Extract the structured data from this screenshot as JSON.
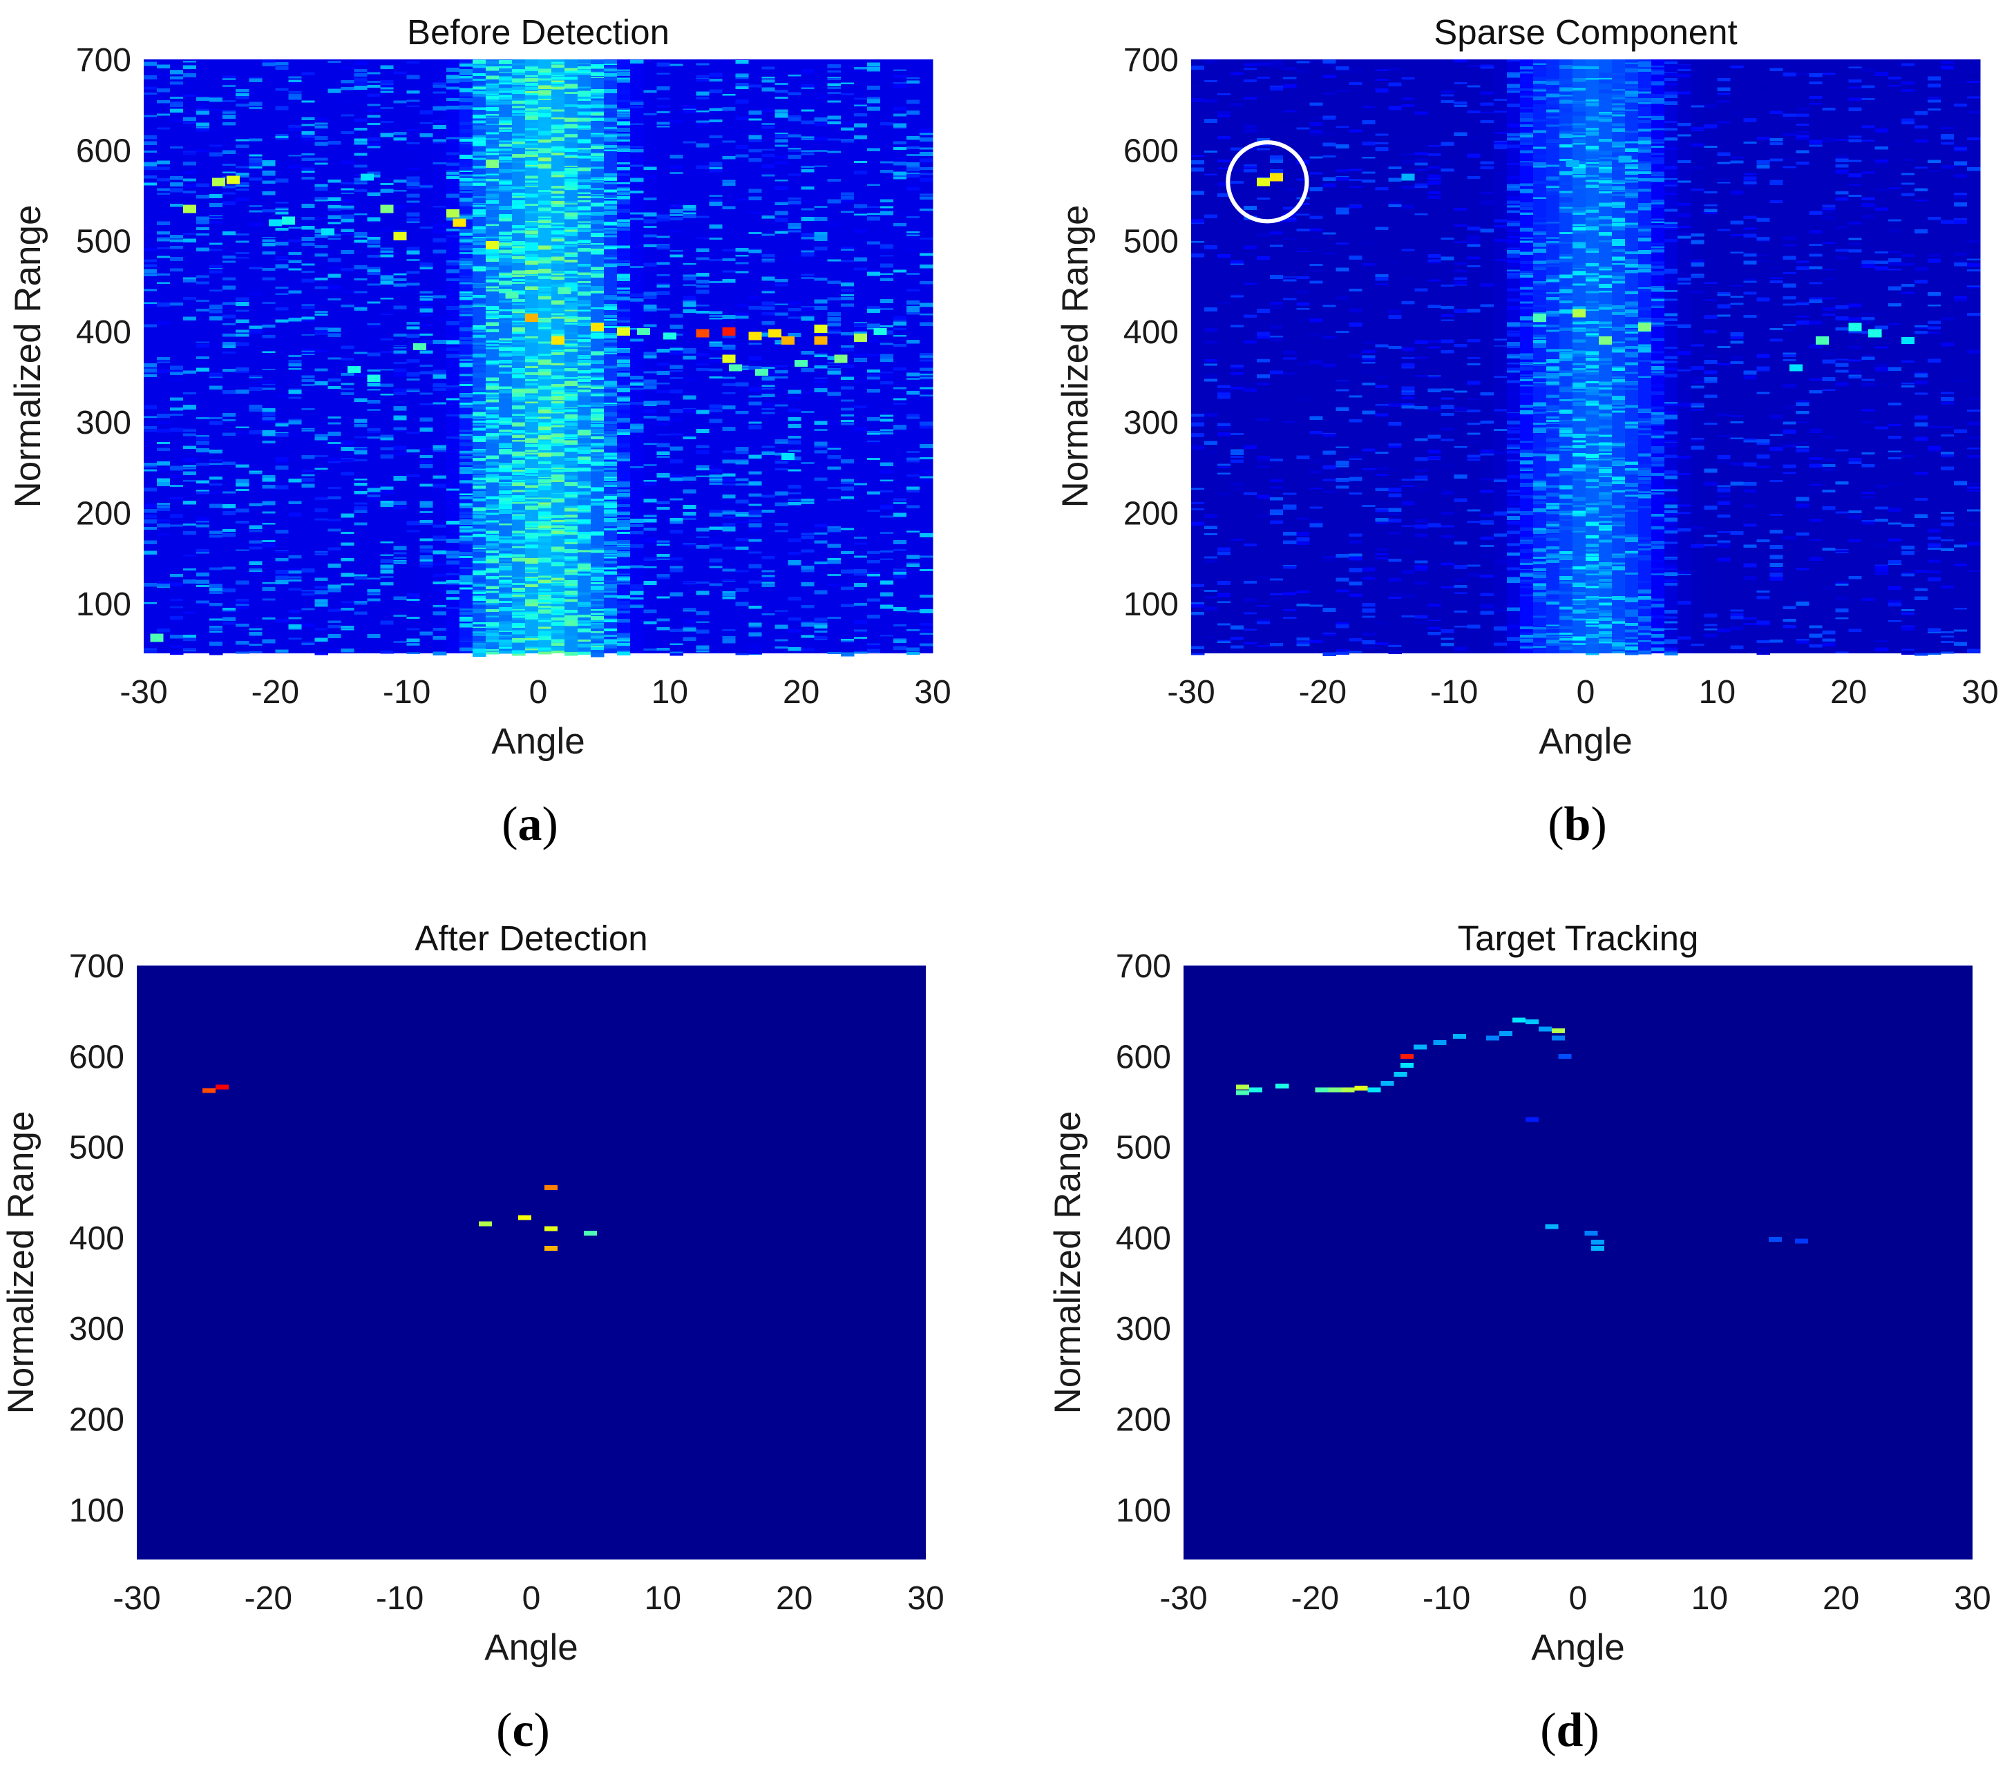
{
  "figure": {
    "colors": {
      "background": "#00008f",
      "colormap": "jet",
      "annotation_circle": "#ffffff"
    }
  },
  "chart_data": [
    {
      "type": "heatmap",
      "id": "a",
      "panel_label": "a",
      "title": "Before Detection",
      "xlabel": "Angle",
      "ylabel": "Normalized Range",
      "xlim": [
        -30,
        30
      ],
      "ylim": [
        45,
        700
      ],
      "xticks": [
        "-30",
        "-20",
        "-10",
        "0",
        "10",
        "20",
        "30"
      ],
      "yticks": [
        "100",
        "200",
        "300",
        "400",
        "500",
        "600",
        "700"
      ],
      "clutter": "strong",
      "hotspots": [
        {
          "x": -26.5,
          "y": 535,
          "v": 0.55
        },
        {
          "x": -24.3,
          "y": 565,
          "v": 0.55
        },
        {
          "x": -23.2,
          "y": 567,
          "v": 0.6
        },
        {
          "x": -19,
          "y": 522,
          "v": 0.4
        },
        {
          "x": -11.5,
          "y": 535,
          "v": 0.5
        },
        {
          "x": -10.5,
          "y": 505,
          "v": 0.6
        },
        {
          "x": -6.5,
          "y": 530,
          "v": 0.55
        },
        {
          "x": -6,
          "y": 520,
          "v": 0.65
        },
        {
          "x": -3.5,
          "y": 585,
          "v": 0.5
        },
        {
          "x": -3.5,
          "y": 495,
          "v": 0.6
        },
        {
          "x": -0.5,
          "y": 415,
          "v": 0.7
        },
        {
          "x": 1.5,
          "y": 390,
          "v": 0.65
        },
        {
          "x": 4.5,
          "y": 405,
          "v": 0.65
        },
        {
          "x": 6.5,
          "y": 400,
          "v": 0.6
        },
        {
          "x": 12.5,
          "y": 398,
          "v": 0.8
        },
        {
          "x": 14.5,
          "y": 400,
          "v": 0.85
        },
        {
          "x": 14.5,
          "y": 370,
          "v": 0.6
        },
        {
          "x": 16.5,
          "y": 395,
          "v": 0.65
        },
        {
          "x": 18,
          "y": 398,
          "v": 0.65
        },
        {
          "x": 19,
          "y": 390,
          "v": 0.7
        },
        {
          "x": 21.5,
          "y": 390,
          "v": 0.7
        },
        {
          "x": 21.5,
          "y": 403,
          "v": 0.6
        },
        {
          "x": 23,
          "y": 370,
          "v": 0.5
        },
        {
          "x": 24.5,
          "y": 393,
          "v": 0.55
        },
        {
          "x": -29,
          "y": 62,
          "v": 0.45
        }
      ],
      "trace": [
        {
          "x": -20,
          "y": 520,
          "v": 0.35
        },
        {
          "x": -16,
          "y": 510,
          "v": 0.35
        },
        {
          "x": -13,
          "y": 570,
          "v": 0.35
        },
        {
          "x": -2,
          "y": 440,
          "v": 0.45
        },
        {
          "x": 2,
          "y": 445,
          "v": 0.45
        },
        {
          "x": 8,
          "y": 400,
          "v": 0.45
        },
        {
          "x": 10,
          "y": 395,
          "v": 0.4
        },
        {
          "x": 15,
          "y": 360,
          "v": 0.45
        },
        {
          "x": 17,
          "y": 355,
          "v": 0.45
        },
        {
          "x": 19,
          "y": 262,
          "v": 0.35
        },
        {
          "x": 20,
          "y": 365,
          "v": 0.45
        },
        {
          "x": 26,
          "y": 400,
          "v": 0.4
        },
        {
          "x": -14,
          "y": 358,
          "v": 0.4
        },
        {
          "x": -9,
          "y": 383,
          "v": 0.45
        },
        {
          "x": -12.5,
          "y": 348,
          "v": 0.4
        }
      ]
    },
    {
      "type": "heatmap",
      "id": "b",
      "panel_label": "b",
      "title": "Sparse Component",
      "xlabel": "Angle",
      "ylabel": "Normalized Range",
      "xlim": [
        -30,
        30
      ],
      "ylim": [
        45,
        700
      ],
      "xticks": [
        "-30",
        "-20",
        "-10",
        "0",
        "10",
        "20",
        "30"
      ],
      "yticks": [
        "100",
        "200",
        "300",
        "400",
        "500",
        "600",
        "700"
      ],
      "clutter": "medium",
      "annotation": {
        "shape": "circle",
        "x": -24.2,
        "y": 565,
        "radius_x": 3
      },
      "hotspots": [
        {
          "x": -24.5,
          "y": 565,
          "v": 0.6
        },
        {
          "x": -23.5,
          "y": 570,
          "v": 0.65
        },
        {
          "x": -0.5,
          "y": 420,
          "v": 0.55
        },
        {
          "x": 1.5,
          "y": 390,
          "v": 0.5
        },
        {
          "x": 4.5,
          "y": 405,
          "v": 0.5
        },
        {
          "x": 18,
          "y": 390,
          "v": 0.45
        },
        {
          "x": 20.5,
          "y": 405,
          "v": 0.4
        },
        {
          "x": 22,
          "y": 398,
          "v": 0.4
        },
        {
          "x": -3.5,
          "y": 415,
          "v": 0.45
        }
      ],
      "trace": [
        {
          "x": -13.5,
          "y": 570,
          "v": 0.3
        },
        {
          "x": -1,
          "y": 585,
          "v": 0.3
        },
        {
          "x": 3,
          "y": 590,
          "v": 0.3
        },
        {
          "x": 16,
          "y": 360,
          "v": 0.35
        },
        {
          "x": 24.5,
          "y": 390,
          "v": 0.35
        }
      ]
    },
    {
      "type": "heatmap",
      "id": "c",
      "panel_label": "c",
      "title": "After Detection",
      "xlabel": "Angle",
      "ylabel": "Normalized Range",
      "xlim": [
        -30,
        30
      ],
      "ylim": [
        45,
        700
      ],
      "xticks": [
        "-30",
        "-20",
        "-10",
        "0",
        "10",
        "20",
        "30"
      ],
      "yticks": [
        "100",
        "200",
        "300",
        "400",
        "500",
        "600",
        "700"
      ],
      "clutter": "none",
      "hotspots": [
        {
          "x": -24.5,
          "y": 562,
          "v": 0.8
        },
        {
          "x": -23.5,
          "y": 566,
          "v": 0.88
        },
        {
          "x": -0.5,
          "y": 422,
          "v": 0.62
        },
        {
          "x": 1.5,
          "y": 388,
          "v": 0.7
        },
        {
          "x": 1.5,
          "y": 455,
          "v": 0.75
        },
        {
          "x": -3.5,
          "y": 415,
          "v": 0.55
        },
        {
          "x": 1.5,
          "y": 410,
          "v": 0.6
        },
        {
          "x": 4.5,
          "y": 405,
          "v": 0.45
        }
      ],
      "trace": []
    },
    {
      "type": "heatmap",
      "id": "d",
      "panel_label": "d",
      "title": "Target Tracking",
      "xlabel": "Angle",
      "ylabel": "Normalized Range",
      "xlim": [
        -30,
        30
      ],
      "ylim": [
        45,
        700
      ],
      "xticks": [
        "-30",
        "-20",
        "-10",
        "0",
        "10",
        "20",
        "30"
      ],
      "yticks": [
        "100",
        "200",
        "300",
        "400",
        "500",
        "600",
        "700"
      ],
      "clutter": "none",
      "hotspots": [
        {
          "x": -25.5,
          "y": 566,
          "v": 0.55
        },
        {
          "x": -25.5,
          "y": 560,
          "v": 0.45
        },
        {
          "x": -24.5,
          "y": 563,
          "v": 0.4
        },
        {
          "x": -22.5,
          "y": 567,
          "v": 0.4
        },
        {
          "x": -19.5,
          "y": 563,
          "v": 0.45
        },
        {
          "x": -18.5,
          "y": 563,
          "v": 0.5
        },
        {
          "x": -17.5,
          "y": 563,
          "v": 0.55
        },
        {
          "x": -16.5,
          "y": 565,
          "v": 0.6
        },
        {
          "x": -15.5,
          "y": 563,
          "v": 0.35
        },
        {
          "x": -14.5,
          "y": 570,
          "v": 0.3
        },
        {
          "x": -13.5,
          "y": 580,
          "v": 0.32
        },
        {
          "x": -13,
          "y": 590,
          "v": 0.35
        },
        {
          "x": -13,
          "y": 600,
          "v": 0.85
        },
        {
          "x": -12,
          "y": 610,
          "v": 0.3
        },
        {
          "x": -10.5,
          "y": 615,
          "v": 0.28
        },
        {
          "x": -9,
          "y": 622,
          "v": 0.3
        },
        {
          "x": -6.5,
          "y": 620,
          "v": 0.25
        },
        {
          "x": -5.5,
          "y": 625,
          "v": 0.28
        },
        {
          "x": -4.5,
          "y": 640,
          "v": 0.35
        },
        {
          "x": -3.5,
          "y": 638,
          "v": 0.32
        },
        {
          "x": -2.5,
          "y": 630,
          "v": 0.28
        },
        {
          "x": -1.5,
          "y": 628,
          "v": 0.55
        },
        {
          "x": -1.5,
          "y": 620,
          "v": 0.25
        },
        {
          "x": -1,
          "y": 600,
          "v": 0.2
        },
        {
          "x": -3.5,
          "y": 530,
          "v": 0.15
        },
        {
          "x": -2,
          "y": 412,
          "v": 0.3
        },
        {
          "x": 1,
          "y": 405,
          "v": 0.25
        },
        {
          "x": 1.5,
          "y": 395,
          "v": 0.28
        },
        {
          "x": 1.5,
          "y": 388,
          "v": 0.3
        },
        {
          "x": 15,
          "y": 398,
          "v": 0.2
        },
        {
          "x": 17,
          "y": 396,
          "v": 0.18
        }
      ],
      "trace": []
    }
  ]
}
